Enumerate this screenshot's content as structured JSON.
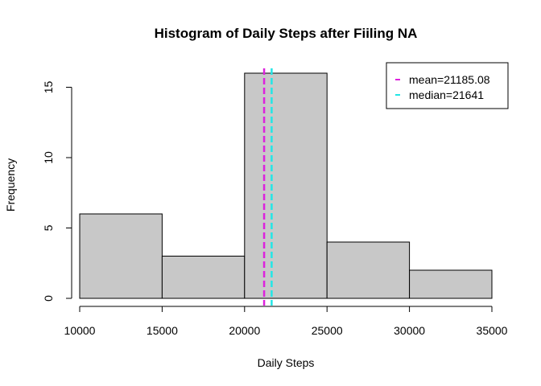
{
  "chart_data": {
    "type": "bar",
    "title": "Histogram of Daily Steps after Fiiling NA",
    "xlabel": "Daily Steps",
    "ylabel": "Frequency",
    "bins": [
      {
        "from": 10000,
        "to": 15000,
        "count": 6
      },
      {
        "from": 15000,
        "to": 20000,
        "count": 3
      },
      {
        "from": 20000,
        "to": 25000,
        "count": 16
      },
      {
        "from": 25000,
        "to": 30000,
        "count": 4
      },
      {
        "from": 30000,
        "to": 35000,
        "count": 2
      }
    ],
    "xlim": [
      10000,
      35000
    ],
    "ylim": [
      0,
      16
    ],
    "x_ticks": [
      10000,
      15000,
      20000,
      25000,
      30000,
      35000
    ],
    "x_tick_labels": [
      "10000",
      "15000",
      "20000",
      "25000",
      "30000",
      "35000"
    ],
    "y_ticks": [
      0,
      5,
      10,
      15
    ],
    "y_tick_labels": [
      "0",
      "5",
      "10",
      "15"
    ],
    "grid": false,
    "bar_color": "#c8c8c8",
    "reference_lines": [
      {
        "name": "mean",
        "value": 21185.08,
        "color": "#dd22dd",
        "label": "mean=21185.08"
      },
      {
        "name": "median",
        "value": 21641,
        "color": "#22e6e6",
        "label": "median=21641"
      }
    ],
    "legend": {
      "position": "top-right",
      "entries": [
        "mean=21185.08",
        "median=21641"
      ]
    }
  }
}
